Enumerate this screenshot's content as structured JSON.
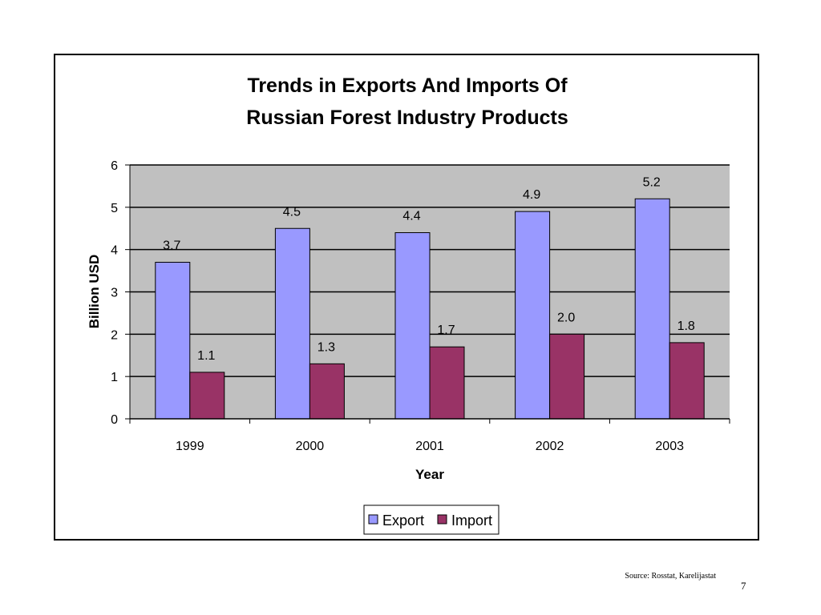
{
  "chart_data": {
    "type": "bar",
    "title_lines": [
      "Trends in Exports And Imports Of",
      "Russian Forest Industry Products"
    ],
    "xlabel": "Year",
    "ylabel": "Billion USD",
    "categories": [
      "1999",
      "2000",
      "2001",
      "2002",
      "2003"
    ],
    "series": [
      {
        "name": "Export",
        "values": [
          3.7,
          4.5,
          4.4,
          4.9,
          5.2
        ],
        "labels": [
          "3.7",
          "4.5",
          "4.4",
          "4.9",
          "5.2"
        ],
        "color": "#9999ff"
      },
      {
        "name": "Import",
        "values": [
          1.1,
          1.3,
          1.7,
          2.0,
          1.8
        ],
        "labels": [
          "1.1",
          "1.3",
          "1.7",
          "2.0",
          "1.8"
        ],
        "color": "#993366"
      }
    ],
    "ylim": [
      0,
      6
    ],
    "yticks": [
      "0",
      "1",
      "2",
      "3",
      "4",
      "5",
      "6"
    ],
    "grid": true,
    "plot_background": "#c0c0c0",
    "legend_position": "bottom"
  },
  "footer": {
    "source": "Source: Rosstat, Karelijastat",
    "page_number": "7"
  }
}
